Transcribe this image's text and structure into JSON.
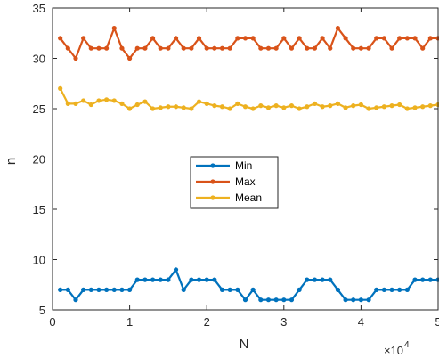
{
  "chart_data": {
    "type": "line",
    "xlabel": "N",
    "ylabel": "n",
    "x_exponent_base": "10",
    "x_exponent_power": "4",
    "xlim": [
      0,
      50000
    ],
    "ylim": [
      5,
      35
    ],
    "x_ticks": [
      0,
      10000,
      20000,
      30000,
      40000,
      50000
    ],
    "x_tick_labels": [
      "0",
      "1",
      "2",
      "3",
      "4",
      "5"
    ],
    "y_ticks": [
      5,
      10,
      15,
      20,
      25,
      30,
      35
    ],
    "y_tick_labels": [
      "5",
      "10",
      "15",
      "20",
      "25",
      "30",
      "35"
    ],
    "grid": false,
    "legend_position": "center",
    "x": [
      1000,
      2000,
      3000,
      4000,
      5000,
      6000,
      7000,
      8000,
      9000,
      10000,
      11000,
      12000,
      13000,
      14000,
      15000,
      16000,
      17000,
      18000,
      19000,
      20000,
      21000,
      22000,
      23000,
      24000,
      25000,
      26000,
      27000,
      28000,
      29000,
      30000,
      31000,
      32000,
      33000,
      34000,
      35000,
      36000,
      37000,
      38000,
      39000,
      40000,
      41000,
      42000,
      43000,
      44000,
      45000,
      46000,
      47000,
      48000,
      49000,
      50000
    ],
    "series": [
      {
        "name": "Min",
        "color": "#0072BD",
        "values": [
          7,
          7,
          6,
          7,
          7,
          7,
          7,
          7,
          7,
          7,
          8,
          8,
          8,
          8,
          8,
          9,
          7,
          8,
          8,
          8,
          8,
          7,
          7,
          7,
          6,
          7,
          6,
          6,
          6,
          6,
          6,
          7,
          8,
          8,
          8,
          8,
          7,
          6,
          6,
          6,
          6,
          7,
          7,
          7,
          7,
          7,
          8,
          8,
          8,
          8
        ]
      },
      {
        "name": "Max",
        "color": "#D95319",
        "values": [
          32,
          31,
          30,
          32,
          31,
          31,
          31,
          33,
          31,
          30,
          31,
          31,
          32,
          31,
          31,
          32,
          31,
          31,
          32,
          31,
          31,
          31,
          31,
          32,
          32,
          32,
          31,
          31,
          31,
          32,
          31,
          32,
          31,
          31,
          32,
          31,
          33,
          32,
          31,
          31,
          31,
          32,
          32,
          31,
          32,
          32,
          32,
          31,
          32,
          32
        ]
      },
      {
        "name": "Mean",
        "color": "#EDB120",
        "values": [
          27.0,
          25.5,
          25.5,
          25.8,
          25.4,
          25.8,
          25.9,
          25.8,
          25.5,
          25.0,
          25.4,
          25.7,
          25.0,
          25.1,
          25.2,
          25.2,
          25.1,
          25.0,
          25.7,
          25.5,
          25.3,
          25.2,
          25.0,
          25.5,
          25.2,
          25.0,
          25.3,
          25.1,
          25.3,
          25.1,
          25.3,
          25.0,
          25.2,
          25.5,
          25.2,
          25.3,
          25.5,
          25.1,
          25.3,
          25.4,
          25.0,
          25.1,
          25.2,
          25.3,
          25.4,
          25.0,
          25.1,
          25.2,
          25.3,
          25.4
        ]
      }
    ]
  }
}
